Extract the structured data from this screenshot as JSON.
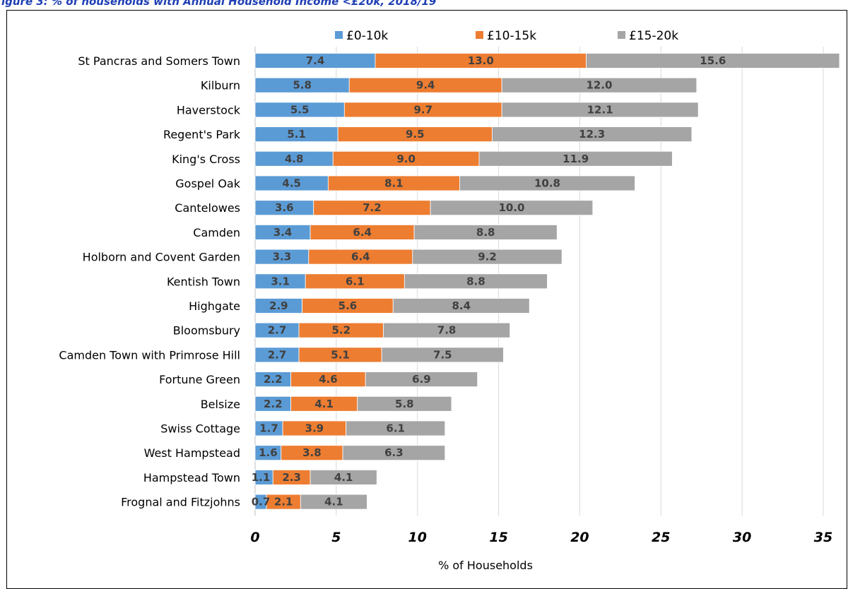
{
  "caption": "igure 3: % of households with Annual Household Income <£20k, 2018/19",
  "chart_data": {
    "type": "bar",
    "orientation": "horizontal",
    "stacked": true,
    "categories": [
      "St Pancras and Somers Town",
      "Kilburn",
      "Haverstock",
      "Regent's Park",
      "King's Cross",
      "Gospel Oak",
      "Cantelowes",
      "Camden",
      "Holborn and Covent Garden",
      "Kentish Town",
      "Highgate",
      "Bloomsbury",
      "Camden Town with Primrose Hill",
      "Fortune Green",
      "Belsize",
      "Swiss Cottage",
      "West Hampstead",
      "Hampstead Town",
      "Frognal and Fitzjohns"
    ],
    "series": [
      {
        "name": "£0-10k",
        "color": "#5b9bd5",
        "values": [
          7.4,
          5.8,
          5.5,
          5.1,
          4.8,
          4.5,
          3.6,
          3.4,
          3.3,
          3.1,
          2.9,
          2.7,
          2.7,
          2.2,
          2.2,
          1.7,
          1.6,
          1.1,
          0.7
        ]
      },
      {
        "name": "£10-15k",
        "color": "#ed7d31",
        "values": [
          13.0,
          9.4,
          9.7,
          9.5,
          9.0,
          8.1,
          7.2,
          6.4,
          6.4,
          6.1,
          5.6,
          5.2,
          5.1,
          4.6,
          4.1,
          3.9,
          3.8,
          2.3,
          2.1
        ]
      },
      {
        "name": "£15-20k",
        "color": "#a5a5a5",
        "values": [
          15.6,
          12.0,
          12.1,
          12.3,
          11.9,
          10.8,
          10.0,
          8.8,
          9.2,
          8.8,
          8.4,
          7.8,
          7.5,
          6.9,
          5.8,
          6.1,
          6.3,
          4.1,
          4.1
        ]
      }
    ],
    "xlim": [
      0,
      35
    ],
    "xticks": [
      "0",
      "5",
      "10",
      "15",
      "20",
      "25",
      "30",
      "35"
    ],
    "xlabel": "% of Households",
    "ylabel": "",
    "grid": "vertical",
    "legend": "top"
  }
}
